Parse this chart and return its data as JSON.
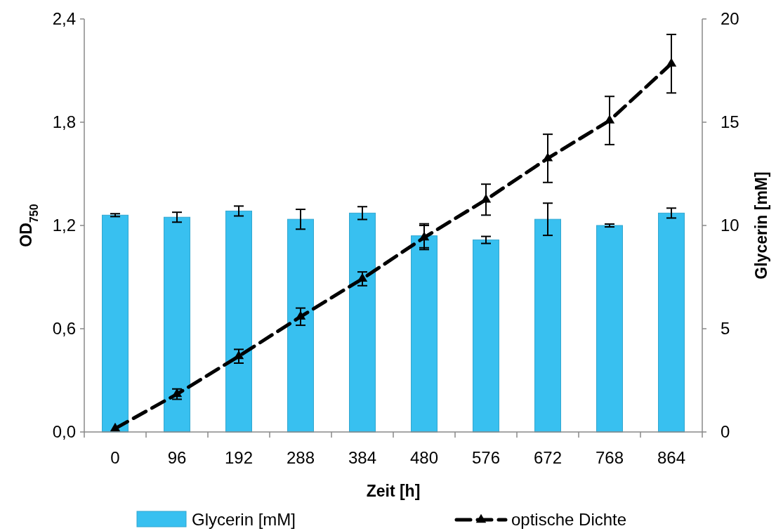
{
  "chart_data": {
    "type": "bar",
    "categories": [
      "0",
      "96",
      "192",
      "288",
      "384",
      "480",
      "576",
      "672",
      "768",
      "864"
    ],
    "xlabel": "Zeit [h]",
    "ylabel": "OD$_{750}$",
    "y2label": "Glycerin [mM]",
    "ylim": [
      0,
      2.4
    ],
    "yticks": [
      {
        "value": 0,
        "label": "0,0"
      },
      {
        "value": 0.6,
        "label": "0,6"
      },
      {
        "value": 1.2,
        "label": "1,2"
      },
      {
        "value": 1.8,
        "label": "1,8"
      },
      {
        "value": 2.4,
        "label": "2,4"
      }
    ],
    "y2lim": [
      0,
      20
    ],
    "y2ticks": [
      0,
      5,
      10,
      15,
      20
    ],
    "series": [
      {
        "name": "Glycerin [mM]",
        "axis": "y2",
        "color": "#38c0f0",
        "values": [
          10.5,
          10.4,
          10.7,
          10.3,
          10.6,
          9.5,
          9.3,
          10.3,
          10.0,
          10.6
        ],
        "errors": [
          0.07,
          0.24,
          0.24,
          0.48,
          0.31,
          0.58,
          0.17,
          0.78,
          0.07,
          0.24
        ]
      },
      {
        "name": "optische Dichte",
        "type": "line",
        "axis": "y",
        "color": "#000000",
        "marker": "triangle",
        "line_style": "dashed",
        "values": [
          0.02,
          0.22,
          0.44,
          0.67,
          0.89,
          1.13,
          1.35,
          1.59,
          1.81,
          2.14
        ],
        "errors": [
          null,
          0.03,
          0.04,
          0.05,
          0.04,
          0.07,
          0.09,
          0.14,
          0.14,
          0.17
        ]
      }
    ],
    "legend": "bottom"
  }
}
